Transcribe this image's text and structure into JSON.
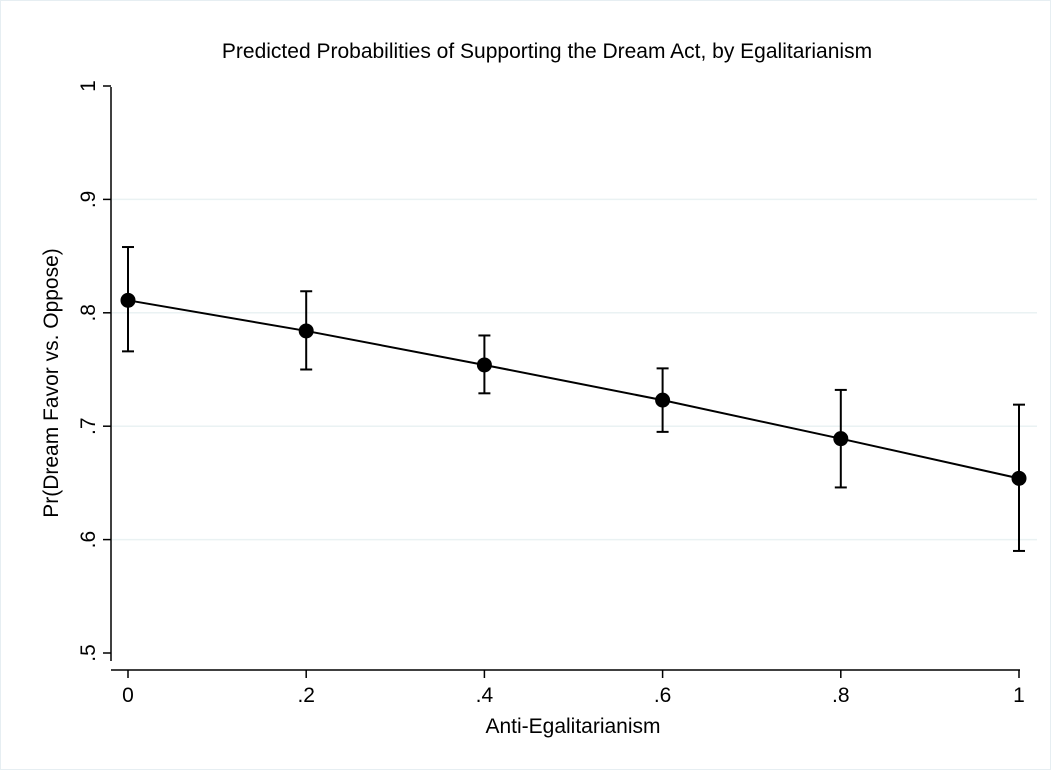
{
  "chart_data": {
    "type": "line",
    "title": "Predicted Probabilities of Supporting the Dream Act, by Egalitarianism",
    "xlabel": "Anti-Egalitarianism",
    "ylabel": "Pr(Dream Favor vs. Oppose)",
    "xlim": [
      0,
      1
    ],
    "ylim": [
      0.5,
      1
    ],
    "x_ticks": [
      0,
      0.2,
      0.4,
      0.6,
      0.8,
      1
    ],
    "x_tick_labels": [
      "0",
      ".2",
      ".4",
      ".6",
      ".8",
      "1"
    ],
    "y_ticks": [
      0.5,
      0.6,
      0.7,
      0.8,
      0.9,
      1
    ],
    "y_tick_labels": [
      ".5",
      ".6",
      ".7",
      ".8",
      ".9",
      "1"
    ],
    "grid": "horizontal",
    "legend": "none",
    "series": [
      {
        "x": [
          0,
          0.2,
          0.4,
          0.6,
          0.8,
          1
        ],
        "y": [
          0.811,
          0.784,
          0.754,
          0.723,
          0.689,
          0.654
        ],
        "ci_low": [
          0.766,
          0.75,
          0.729,
          0.695,
          0.646,
          0.59
        ],
        "ci_high": [
          0.858,
          0.819,
          0.78,
          0.751,
          0.732,
          0.719
        ]
      }
    ],
    "colors": {
      "line": "#000000",
      "grid": "#eaf2f3",
      "axis": "#000000"
    }
  }
}
